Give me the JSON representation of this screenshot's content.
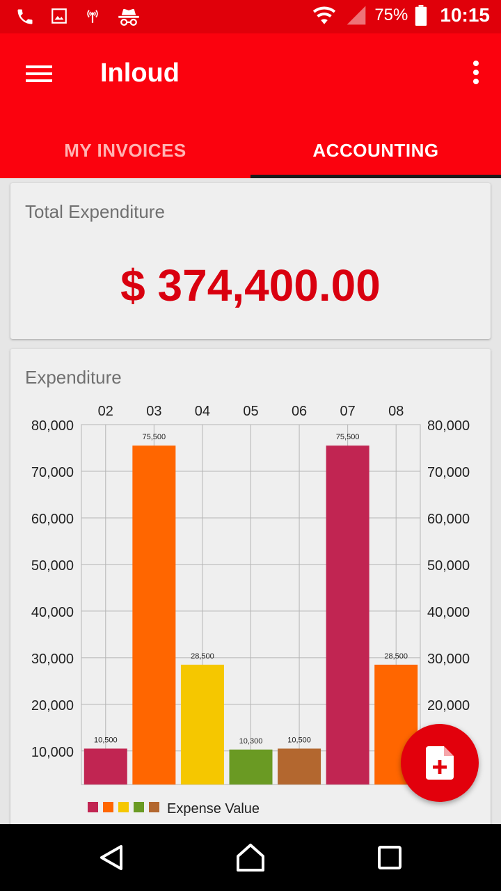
{
  "status_bar": {
    "battery": "75%",
    "time": "10:15",
    "left_icons": [
      "phone-icon",
      "image-icon",
      "hotspot-icon",
      "incognito-icon"
    ],
    "right_icons": [
      "wifi-icon",
      "signal-icon",
      "battery-icon"
    ]
  },
  "app_bar": {
    "title": "Inloud",
    "tabs": [
      {
        "label": "MY INVOICES",
        "active": false
      },
      {
        "label": "ACCOUNTING",
        "active": true
      }
    ]
  },
  "total_card": {
    "title": "Total Expenditure",
    "value": "$ 374,400.00"
  },
  "expenditure_card": {
    "title": "Expenditure"
  },
  "chart_data": {
    "type": "bar",
    "categories": [
      "02",
      "03",
      "04",
      "05",
      "06",
      "07",
      "08"
    ],
    "series": [
      {
        "name": "Expense Value",
        "values": [
          10500,
          75500,
          28500,
          10300,
          10500,
          75500,
          28500
        ],
        "value_labels": [
          "10,500",
          "75,500",
          "28,500",
          "10,300",
          "10,500",
          "75,500",
          "28,500"
        ],
        "colors": [
          "#c12552",
          "#ff6600",
          "#f5c700",
          "#6a9a23",
          "#b3672f",
          "#c12552",
          "#ff6600"
        ]
      }
    ],
    "yticks": [
      10000,
      20000,
      30000,
      40000,
      50000,
      60000,
      70000,
      80000
    ],
    "ytick_labels": [
      "10,000",
      "20,000",
      "30,000",
      "40,000",
      "50,000",
      "60,000",
      "70,000",
      "80,000"
    ],
    "ylim_visible": [
      2800,
      80000
    ],
    "xaxis_position": "top",
    "yaxis": "both",
    "grid": true,
    "legend": {
      "position": "bottom-left",
      "label": "Expense Value"
    }
  },
  "colors": {
    "status_bar": "#e0000a",
    "app_bar": "#fb020e",
    "accent": "#d9000f",
    "fab": "#e2000c"
  },
  "fab": {
    "icon": "add-document-icon"
  },
  "nav_bar": {
    "icons": [
      "back-icon",
      "home-icon",
      "recents-icon"
    ]
  }
}
